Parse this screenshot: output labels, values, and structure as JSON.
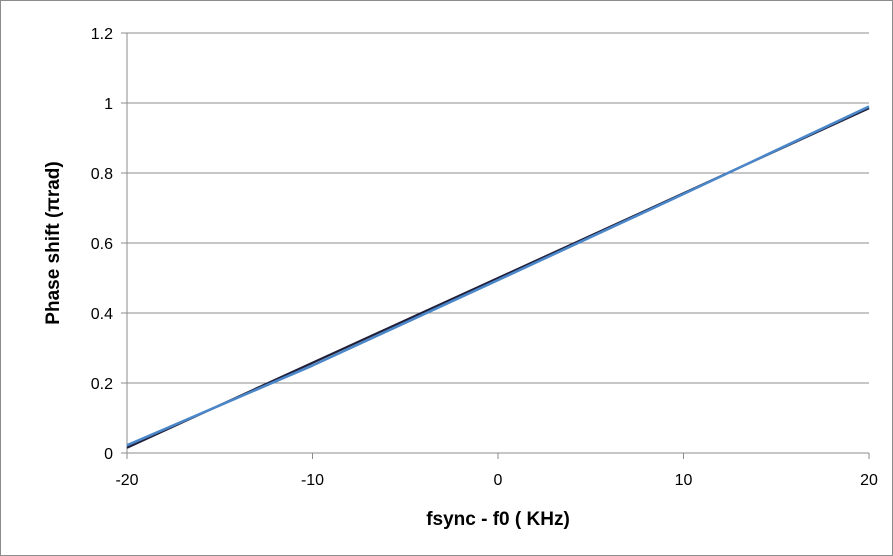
{
  "chart_data": {
    "type": "line",
    "title": "",
    "xlabel": "fsync - f0 ( KHz)",
    "ylabel": "Phase shift (πrad)",
    "xlim": [
      -20,
      20
    ],
    "ylim": [
      0,
      1.2
    ],
    "x_ticks": [
      -20,
      -10,
      0,
      10,
      20
    ],
    "y_ticks": [
      0,
      0.2,
      0.4,
      0.6,
      0.8,
      1,
      1.2
    ],
    "x_tick_labels": [
      "-20",
      "-10",
      "0",
      "10",
      "20"
    ],
    "y_tick_labels": [
      "0",
      "0.2",
      "0.4",
      "0.6",
      "0.8",
      "1",
      "1.2"
    ],
    "grid": "horizontal",
    "legend": "none",
    "series": [
      {
        "color": "#1f1f3a",
        "x": [
          -20,
          -10,
          0,
          10,
          20
        ],
        "y": [
          0.015,
          0.258,
          0.5,
          0.742,
          0.985
        ]
      },
      {
        "color": "#4a86c8",
        "x": [
          -20,
          -10,
          0,
          10,
          20
        ],
        "y": [
          0.022,
          0.25,
          0.494,
          0.74,
          0.99
        ]
      }
    ]
  }
}
